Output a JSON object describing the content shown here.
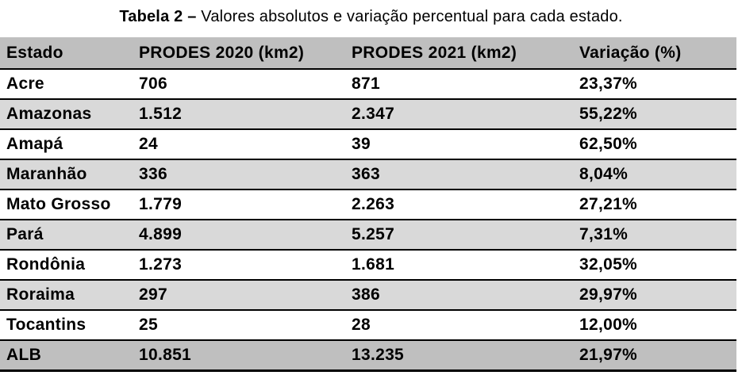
{
  "caption": {
    "label": "Tabela 2 –",
    "text": " Valores absolutos e variação percentual para cada estado."
  },
  "table": {
    "headers": [
      "Estado",
      "PRODES 2020 (km2)",
      "PRODES 2021 (km2)",
      "Variação (%)"
    ],
    "rows": [
      [
        "Acre",
        "706",
        "871",
        "23,37%"
      ],
      [
        "Amazonas",
        "1.512",
        "2.347",
        "55,22%"
      ],
      [
        "Amapá",
        "24",
        "39",
        "62,50%"
      ],
      [
        "Maranhão",
        "336",
        "363",
        "8,04%"
      ],
      [
        "Mato Grosso",
        "1.779",
        "2.263",
        "27,21%"
      ],
      [
        "Pará",
        "4.899",
        "5.257",
        "7,31%"
      ],
      [
        "Rondônia",
        "1.273",
        "1.681",
        "32,05%"
      ],
      [
        "Roraima",
        "297",
        "386",
        "29,97%"
      ],
      [
        "Tocantins",
        "25",
        "28",
        "12,00%"
      ],
      [
        "ALB",
        "10.851",
        "13.235",
        "21,97%"
      ]
    ],
    "total_row_label": "ALB",
    "colors": {
      "header_background": "#bfbfbf",
      "stripe_background": "#d9d9d9",
      "total_background": "#bfbfbf",
      "row_border": "#000000",
      "text": "#000000",
      "page_background": "#ffffff"
    }
  }
}
